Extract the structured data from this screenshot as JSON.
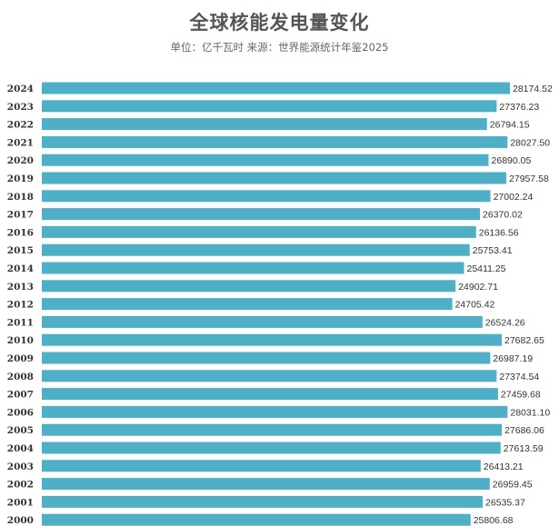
{
  "title": "全球核能发电量变化",
  "subtitle": "单位：亿千瓦时  来源：世界能源统计年鉴2025",
  "colors": {
    "bar": "#4eafc6",
    "title": "#555555",
    "label": "#333333"
  },
  "chart_data": {
    "type": "bar",
    "orientation": "horizontal",
    "categories": [
      "2024",
      "2023",
      "2022",
      "2021",
      "2020",
      "2019",
      "2018",
      "2017",
      "2016",
      "2015",
      "2014",
      "2013",
      "2012",
      "2011",
      "2010",
      "2009",
      "2008",
      "2007",
      "2006",
      "2005",
      "2004",
      "2003",
      "2002",
      "2001",
      "2000"
    ],
    "values": [
      28174.52,
      27376.23,
      26794.15,
      28027.5,
      26890.05,
      27957.58,
      27002.24,
      26370.02,
      26136.56,
      25753.41,
      25411.25,
      24902.71,
      24705.42,
      26524.26,
      27682.65,
      26987.19,
      27374.54,
      27459.68,
      28031.1,
      27686.06,
      27613.59,
      26413.21,
      26959.45,
      26535.37,
      25806.68
    ],
    "value_labels": [
      "28174.52",
      "27376.23",
      "26794.15",
      "28027.50",
      "26890.05",
      "27957.58",
      "27002.24",
      "26370.02",
      "26136.56",
      "25753.41",
      "25411.25",
      "24902.71",
      "24705.42",
      "26524.26",
      "27682.65",
      "26987.19",
      "27374.54",
      "27459.68",
      "28031.10",
      "27686.06",
      "27613.59",
      "26413.21",
      "26959.45",
      "26535.37",
      "25806.68"
    ],
    "xlim": [
      0,
      28174.52
    ],
    "grid": false,
    "legend": "none"
  }
}
